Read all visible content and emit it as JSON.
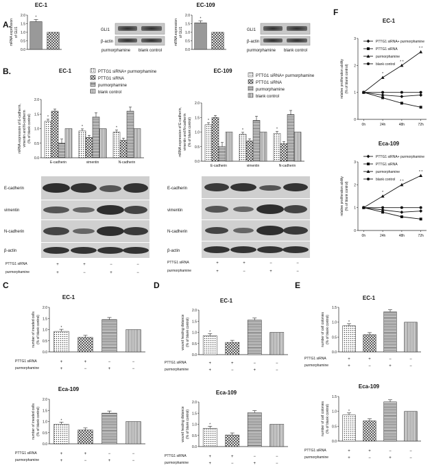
{
  "panels": {
    "a": "A.",
    "b": "B.",
    "c": "C",
    "d": "D",
    "e": "E",
    "f": "F"
  },
  "cell_lines": {
    "ec1": "EC-1",
    "ec109": "EC-109",
    "eca109": "Eca-109"
  },
  "treatments": {
    "siRNA_purm": "PTTG1 siRNA+ purmorphamine",
    "siRNA": "PTTG1 siRNA",
    "purm": "purmorphamine",
    "blank": "blank control"
  },
  "row_labels": {
    "siRNA": "PTTG1 siRNA",
    "purm": "purmorphamine"
  },
  "signs": {
    "siRNA": [
      "+",
      "+",
      "−",
      "−"
    ],
    "purm": [
      "+",
      "−",
      "+",
      "−"
    ]
  },
  "blots": {
    "gli1": "GLI1",
    "bactin": "β-actin",
    "ecad": "E-cadherin",
    "vim": "vimentin",
    "ncad": "N-cadherin"
  },
  "gene_groups": [
    "E-cadherin",
    "vimentin",
    "N-cadherin"
  ],
  "ylabels": {
    "gli": [
      "mRNA expression",
      "of GLI1"
    ],
    "emt": [
      "mRNA expression of E-cadherin,",
      "vimentin and N-cadherin",
      "(% of blank control)"
    ],
    "invaded": [
      "number of invaded cells",
      "(% of blank control)"
    ],
    "wound": [
      "wound healing distance",
      "(% of blank control)"
    ],
    "colonies": [
      "number of cell colonies",
      "(% of blank control)"
    ],
    "prolif": [
      "relative proliferation ability",
      "(% of blank control)"
    ]
  },
  "star": "*",
  "chart_data": [
    {
      "id": "A-EC1",
      "type": "bar",
      "title": "EC-1",
      "categories": [
        "purmorphamine",
        "blank control"
      ],
      "values": [
        1.62,
        1.0
      ],
      "ylim": [
        0,
        2.0
      ],
      "yticks": [
        0,
        0.5,
        1.0,
        1.5,
        2.0
      ]
    },
    {
      "id": "A-EC109",
      "type": "bar",
      "title": "EC-109",
      "categories": [
        "purmorphamine",
        "blank control"
      ],
      "values": [
        1.55,
        1.0
      ],
      "ylim": [
        0,
        2.0
      ],
      "yticks": [
        0,
        0.5,
        1.0,
        1.5,
        2.0
      ]
    },
    {
      "id": "B-EC1",
      "type": "bar",
      "title": "EC-1",
      "categories": [
        "E-cadherin",
        "vimentin",
        "N-cadherin"
      ],
      "series": [
        {
          "name": "PTTG1 siRNA+ purmorphamine",
          "values": [
            1.25,
            0.92,
            0.88
          ]
        },
        {
          "name": "PTTG1 siRNA",
          "values": [
            1.6,
            0.7,
            0.6
          ]
        },
        {
          "name": "purmorphamine",
          "values": [
            0.5,
            1.4,
            1.6
          ]
        },
        {
          "name": "blank control",
          "values": [
            1.0,
            1.0,
            1.0
          ]
        }
      ],
      "ylim": [
        0,
        2.0
      ],
      "yticks": [
        0,
        0.5,
        1.0,
        1.5,
        2.0
      ]
    },
    {
      "id": "B-EC109",
      "type": "bar",
      "title": "EC-109",
      "categories": [
        "E-cadherin",
        "vimentin",
        "N-cadherin"
      ],
      "series": [
        {
          "name": "PTTG1 siRNA+ purmorphamine",
          "values": [
            1.25,
            0.92,
            0.95
          ]
        },
        {
          "name": "PTTG1 siRNA",
          "values": [
            1.5,
            0.7,
            0.6
          ]
        },
        {
          "name": "purmorphamine",
          "values": [
            0.5,
            1.4,
            1.6
          ]
        },
        {
          "name": "blank control",
          "values": [
            1.0,
            1.0,
            1.0
          ]
        }
      ],
      "ylim": [
        0,
        2.0
      ],
      "yticks": [
        0,
        0.5,
        1.0,
        1.5,
        2.0
      ]
    },
    {
      "id": "C-EC1",
      "type": "bar",
      "title": "EC-1",
      "values": [
        0.92,
        0.65,
        1.45,
        1.0
      ],
      "ylim": [
        0,
        2.0
      ],
      "yticks": [
        0,
        0.5,
        1.0,
        1.5,
        2.0
      ]
    },
    {
      "id": "C-Eca109",
      "type": "bar",
      "title": "Eca-109",
      "values": [
        0.88,
        0.62,
        1.38,
        1.0
      ],
      "ylim": [
        0,
        2.0
      ],
      "yticks": [
        0,
        0.5,
        1.0,
        1.5,
        2.0
      ]
    },
    {
      "id": "D-EC1",
      "type": "bar",
      "title": "EC-1",
      "values": [
        0.85,
        0.55,
        1.55,
        1.0
      ],
      "ylim": [
        0,
        2.0
      ],
      "yticks": [
        0,
        0.5,
        1.0,
        1.5,
        2.0
      ]
    },
    {
      "id": "D-Eca109",
      "type": "bar",
      "title": "Eca-109",
      "values": [
        0.82,
        0.52,
        1.52,
        1.0
      ],
      "ylim": [
        0,
        2.0
      ],
      "yticks": [
        0,
        0.5,
        1.0,
        1.5,
        2.0
      ]
    },
    {
      "id": "E-EC1",
      "type": "bar",
      "title": "EC-1",
      "values": [
        0.88,
        0.58,
        1.35,
        1.0
      ],
      "ylim": [
        0,
        1.5
      ],
      "yticks": [
        0,
        0.5,
        1.0,
        1.5
      ]
    },
    {
      "id": "E-Eca109",
      "type": "bar",
      "title": "Eca-109",
      "values": [
        0.88,
        0.68,
        1.32,
        1.0
      ],
      "ylim": [
        0,
        1.5
      ],
      "yticks": [
        0,
        0.5,
        1.0,
        1.5
      ]
    },
    {
      "id": "F-EC1",
      "type": "line",
      "title": "EC-1",
      "x": [
        "0h",
        "24h",
        "48h",
        "72h"
      ],
      "series": [
        {
          "name": "PTTG1 siRNA+ purmorphamine",
          "values": [
            1.0,
            0.9,
            0.85,
            0.9
          ]
        },
        {
          "name": "PTTG1 siRNA",
          "values": [
            1.0,
            0.8,
            0.6,
            0.45
          ]
        },
        {
          "name": "purmorphamine",
          "values": [
            1.0,
            1.55,
            2.0,
            2.5
          ]
        },
        {
          "name": "blank control",
          "values": [
            1.0,
            1.0,
            1.0,
            1.0
          ]
        }
      ],
      "ylim": [
        0,
        3
      ],
      "yticks": [
        0,
        1,
        2,
        3
      ]
    },
    {
      "id": "F-Eca109",
      "type": "line",
      "title": "Eca-109",
      "x": [
        "0h",
        "24h",
        "48h",
        "72h"
      ],
      "series": [
        {
          "name": "PTTG1 siRNA+ purmorphamine",
          "values": [
            1.0,
            0.9,
            0.8,
            0.85
          ]
        },
        {
          "name": "PTTG1 siRNA",
          "values": [
            1.0,
            0.8,
            0.6,
            0.5
          ]
        },
        {
          "name": "purmorphamine",
          "values": [
            1.0,
            1.5,
            2.0,
            2.4
          ]
        },
        {
          "name": "blank control",
          "values": [
            1.0,
            1.0,
            1.0,
            1.0
          ]
        }
      ],
      "ylim": [
        0,
        3
      ],
      "yticks": [
        0,
        1,
        2,
        3
      ]
    }
  ]
}
